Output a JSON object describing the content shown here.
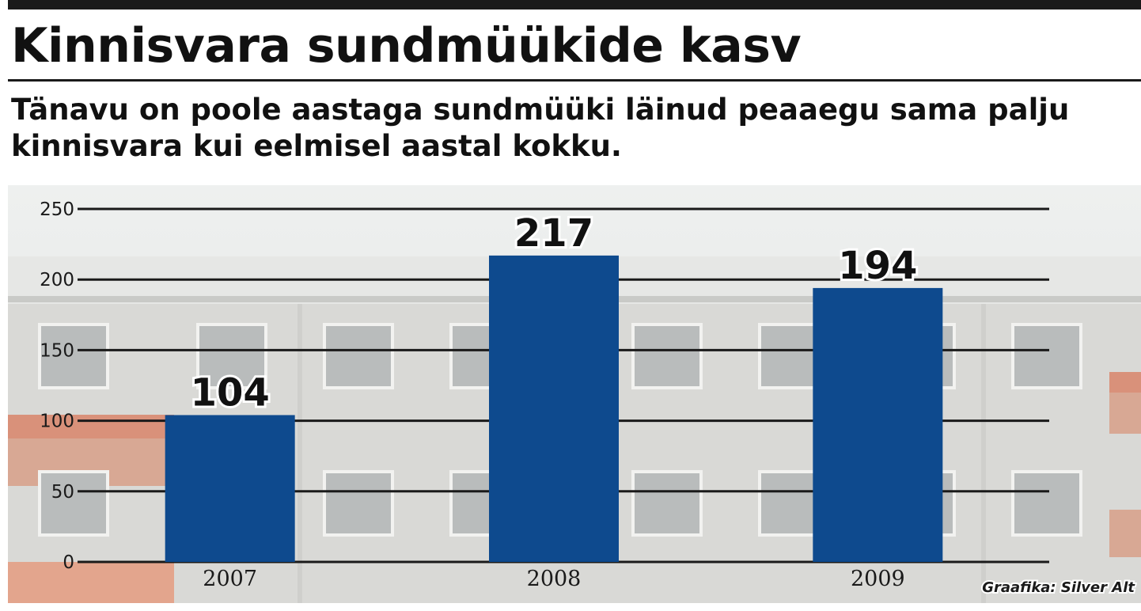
{
  "header": {
    "title": "Kinnisvara sundmüükide kasv",
    "subtitle": "Tänavu on poole aastaga sundmüüki läinud peaaegu sama palju kinnisvara kui eelmisel aastal kokku."
  },
  "credit": "Graafika: Silver Alt",
  "colors": {
    "bar": "#0e4a8e",
    "gridline": "#1a1a1a",
    "background_photo": "#dcdcda"
  },
  "chart_data": {
    "type": "bar",
    "title": "Kinnisvara sundmüükide kasv",
    "subtitle": "Tänavu on poole aastaga sundmüüki läinud peaaegu sama palju kinnisvara kui eelmisel aastal kokku.",
    "categories": [
      "2007",
      "2008",
      "2009"
    ],
    "values": [
      104,
      217,
      194
    ],
    "data_labels": [
      "104",
      "217",
      "194"
    ],
    "xlabel": "",
    "ylabel": "",
    "ylim": [
      0,
      250
    ],
    "yticks": [
      0,
      50,
      100,
      150,
      200,
      250
    ],
    "grid": true,
    "legend": "none"
  }
}
